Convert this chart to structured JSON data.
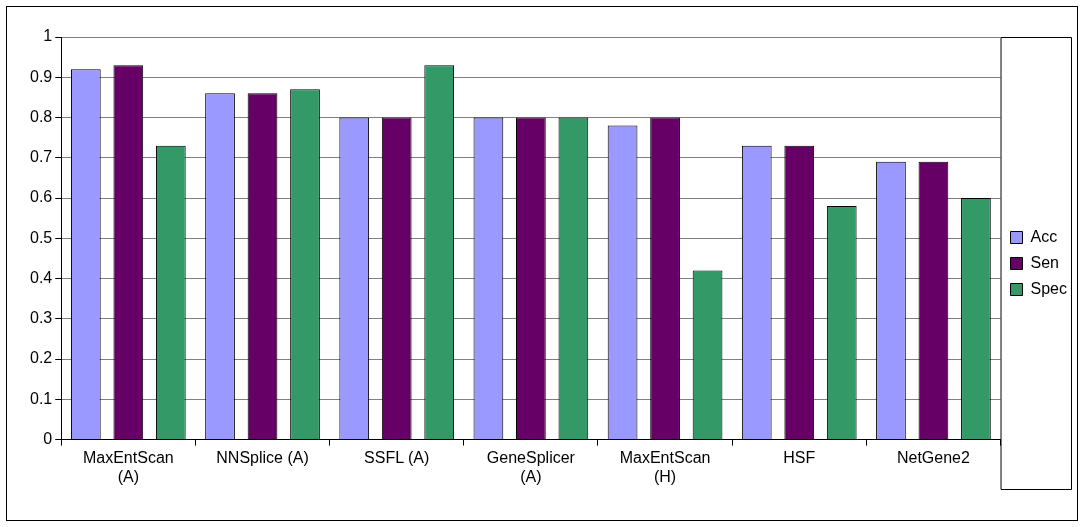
{
  "chart_data": {
    "type": "bar",
    "categories": [
      "MaxEntScan (A)",
      "NNSplice (A)",
      "SSFL (A)",
      "GeneSplicer (A)",
      "MaxEntScan (H)",
      "HSF",
      "NetGene2"
    ],
    "series": [
      {
        "name": "Acc",
        "color": "#9999ff",
        "values": [
          0.92,
          0.86,
          0.8,
          0.8,
          0.78,
          0.73,
          0.69
        ]
      },
      {
        "name": "Sen",
        "color": "#660066",
        "values": [
          0.93,
          0.86,
          0.8,
          0.8,
          0.8,
          0.73,
          0.69
        ]
      },
      {
        "name": "Spec",
        "color": "#339966",
        "values": [
          0.73,
          0.87,
          0.93,
          0.8,
          0.42,
          0.58,
          0.6
        ]
      }
    ],
    "ylim": [
      0,
      1
    ],
    "yticks": [
      0,
      0.1,
      0.2,
      0.3,
      0.4,
      0.5,
      0.6,
      0.7,
      0.8,
      0.9,
      1
    ],
    "grid": "y",
    "legend": "right"
  }
}
